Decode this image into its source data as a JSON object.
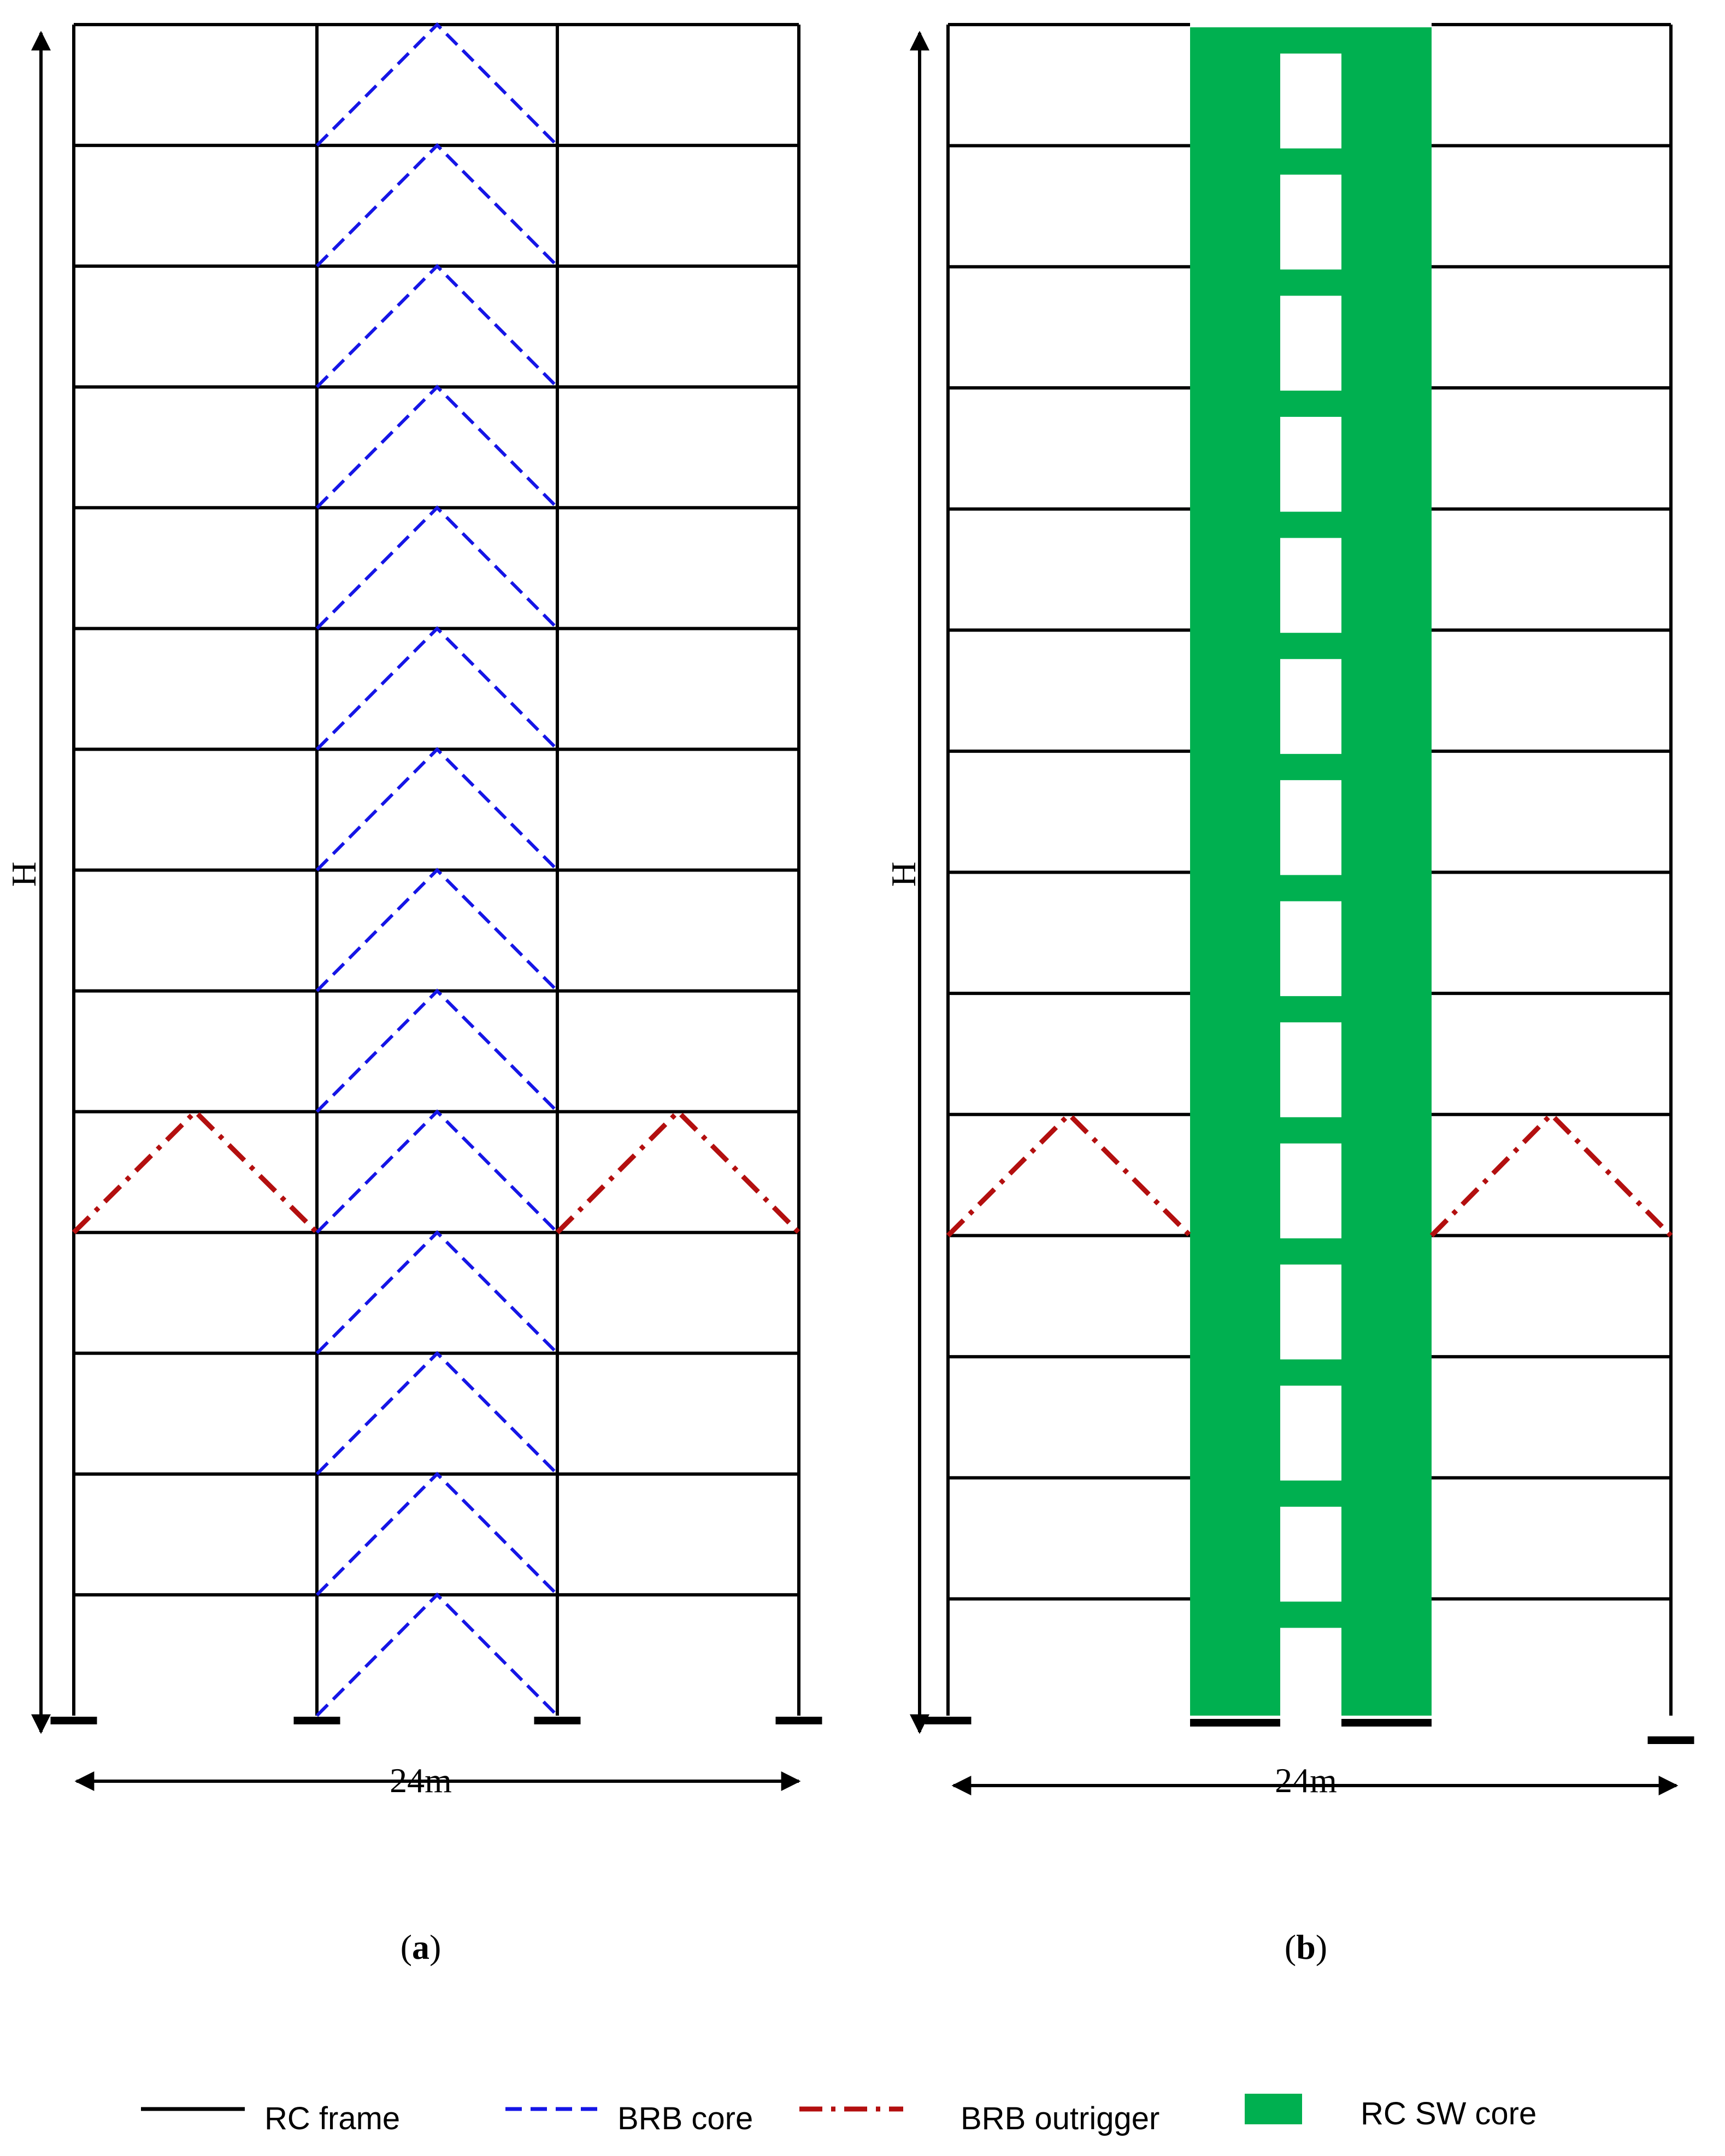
{
  "panels": [
    {
      "id": "a",
      "letter": "a",
      "height_label": "H",
      "width_label": "24m",
      "core": "brb"
    },
    {
      "id": "b",
      "letter": "b",
      "height_label": "H",
      "width_label": "24m",
      "core": "sw"
    }
  ],
  "structure": {
    "stories": 14,
    "bays": 3,
    "outrigger_story": 5
  },
  "legend": {
    "rc_frame": "RC frame",
    "brb_core": "BRB core",
    "brb_outrigger": "BRB outrigger",
    "rc_sw_core": "RC SW core"
  },
  "colors": {
    "frame": "#000000",
    "brb_core": "#1515e6",
    "brb_outrigger": "#b30f0f",
    "sw_core": "#00b050"
  }
}
